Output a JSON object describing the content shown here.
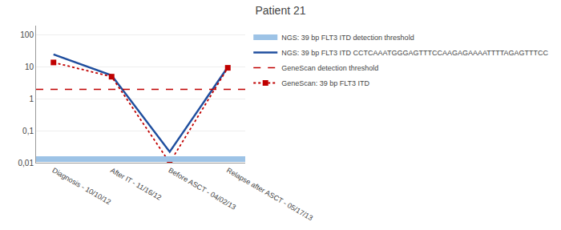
{
  "chart_data": {
    "type": "line",
    "title": "Patient 21",
    "categories": [
      "Diagnosis - 10/10/12",
      "After IT - 11/16/12",
      "Before ASCT - 04/02/13",
      "Relapse after ASCT - 05/17/13"
    ],
    "series": [
      {
        "name": "NGS: 39 bp FLT3 ITD detection threshold",
        "type": "hline",
        "color": "#9DC3E6",
        "line_style": "solid",
        "values": [
          0.013,
          0.013,
          0.013,
          0.013
        ]
      },
      {
        "name": "NGS: 39 bp FLT3 ITD CCTCAAATGGGAGTTTCCAAGAGAAAATTTTAGAGTTTCC",
        "type": "line",
        "color": "#1F4E9E",
        "line_style": "solid",
        "values": [
          25,
          5.5,
          0.022,
          10.0
        ]
      },
      {
        "name": "GeneScan detection threshold",
        "type": "hline",
        "color": "#C00000",
        "line_style": "dashed",
        "values": [
          2.0,
          2.0,
          2.0,
          2.0
        ]
      },
      {
        "name": "GeneScan: 39 bp FLT3 ITD",
        "type": "line",
        "color": "#C00000",
        "line_style": "dotted",
        "marker": "square",
        "values": [
          14,
          5.0,
          0.01,
          9.5
        ]
      }
    ],
    "log": "y",
    "ylim": [
      0.01,
      200
    ],
    "yticks": [
      {
        "value": 0.01,
        "label": "0,01"
      },
      {
        "value": 0.1,
        "label": "0,1"
      },
      1,
      10,
      100
    ],
    "grid": true,
    "legend": "right"
  }
}
